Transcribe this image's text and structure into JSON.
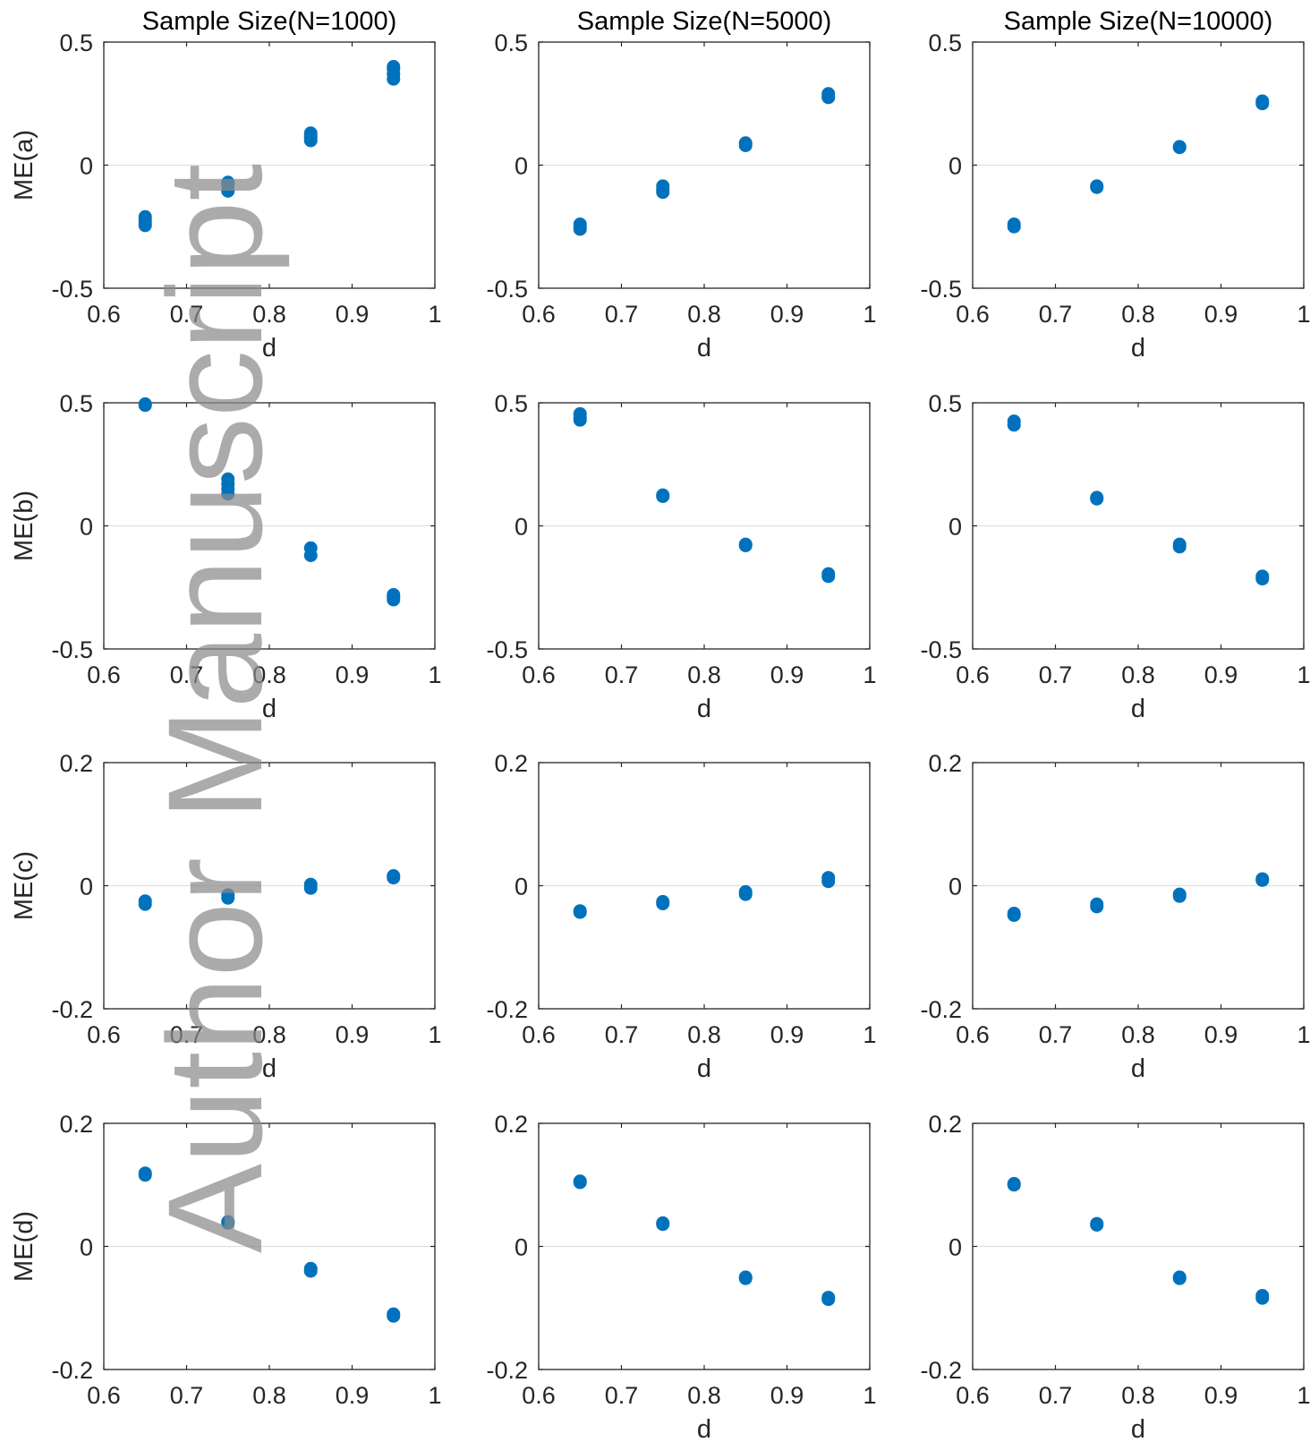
{
  "colors": {
    "marker": "#0072BD",
    "axis": "#262626",
    "zero_line": "#e0e0e0",
    "watermark": "#8c8c8c"
  },
  "watermark_text": "Author Manuscript",
  "column_titles": [
    "Sample Size(N=1000)",
    "Sample Size(N=5000)",
    "Sample Size(N=10000)"
  ],
  "chart_data": [
    {
      "type": "scatter",
      "title": "Sample Size(N=1000)",
      "ylabel": "ME(a)",
      "xlabel": "d",
      "xlim": [
        0.6,
        1
      ],
      "ylim": [
        -0.5,
        0.5
      ],
      "xticks": [
        "0.6",
        "0.7",
        "0.8",
        "0.9",
        "1"
      ],
      "yticks": [
        "-0.5",
        "0",
        "0.5"
      ],
      "x": [
        0.65,
        0.65,
        0.65,
        0.65,
        0.75,
        0.75,
        0.75,
        0.85,
        0.85,
        0.85,
        0.85,
        0.95,
        0.95,
        0.95,
        0.95
      ],
      "y": [
        -0.21,
        -0.22,
        -0.235,
        -0.245,
        -0.07,
        -0.08,
        -0.105,
        0.13,
        0.12,
        0.11,
        0.1,
        0.4,
        0.39,
        0.37,
        0.35
      ]
    },
    {
      "type": "scatter",
      "title": "Sample Size(N=5000)",
      "ylabel": "",
      "xlabel": "d",
      "xlim": [
        0.6,
        1
      ],
      "ylim": [
        -0.5,
        0.5
      ],
      "xticks": [
        "0.6",
        "0.7",
        "0.8",
        "0.9",
        "1"
      ],
      "yticks": [
        "-0.5",
        "0",
        "0.5"
      ],
      "x": [
        0.65,
        0.65,
        0.65,
        0.75,
        0.75,
        0.75,
        0.85,
        0.85,
        0.95,
        0.95,
        0.95
      ],
      "y": [
        -0.24,
        -0.25,
        -0.26,
        -0.085,
        -0.1,
        -0.11,
        0.09,
        0.08,
        0.29,
        0.28,
        0.275
      ]
    },
    {
      "type": "scatter",
      "title": "Sample Size(N=10000)",
      "ylabel": "",
      "xlabel": "d",
      "xlim": [
        0.6,
        1
      ],
      "ylim": [
        -0.5,
        0.5
      ],
      "xticks": [
        "0.6",
        "0.7",
        "0.8",
        "0.9",
        "1"
      ],
      "yticks": [
        "-0.5",
        "0",
        "0.5"
      ],
      "x": [
        0.65,
        0.65,
        0.75,
        0.75,
        0.85,
        0.85,
        0.95,
        0.95
      ],
      "y": [
        -0.24,
        -0.25,
        -0.085,
        -0.09,
        0.075,
        0.072,
        0.26,
        0.25
      ]
    },
    {
      "type": "scatter",
      "title": "",
      "ylabel": "ME(b)",
      "xlabel": "d",
      "xlim": [
        0.6,
        1
      ],
      "ylim": [
        -0.5,
        0.5
      ],
      "xticks": [
        "0.6",
        "0.7",
        "0.8",
        "0.9",
        "1"
      ],
      "yticks": [
        "-0.5",
        "0",
        "0.5"
      ],
      "x": [
        0.65,
        0.65,
        0.75,
        0.75,
        0.75,
        0.75,
        0.85,
        0.85,
        0.95,
        0.95,
        0.95
      ],
      "y": [
        0.495,
        0.49,
        0.19,
        0.17,
        0.15,
        0.13,
        -0.09,
        -0.12,
        -0.28,
        -0.29,
        -0.3
      ]
    },
    {
      "type": "scatter",
      "title": "",
      "ylabel": "",
      "xlabel": "d",
      "xlim": [
        0.6,
        1
      ],
      "ylim": [
        -0.5,
        0.5
      ],
      "xticks": [
        "0.6",
        "0.7",
        "0.8",
        "0.9",
        "1"
      ],
      "yticks": [
        "-0.5",
        "0",
        "0.5"
      ],
      "x": [
        0.65,
        0.65,
        0.65,
        0.75,
        0.75,
        0.85,
        0.85,
        0.95,
        0.95
      ],
      "y": [
        0.455,
        0.44,
        0.43,
        0.125,
        0.12,
        -0.075,
        -0.08,
        -0.195,
        -0.205
      ]
    },
    {
      "type": "scatter",
      "title": "",
      "ylabel": "",
      "xlabel": "d",
      "xlim": [
        0.6,
        1
      ],
      "ylim": [
        -0.5,
        0.5
      ],
      "xticks": [
        "0.6",
        "0.7",
        "0.8",
        "0.9",
        "1"
      ],
      "yticks": [
        "-0.5",
        "0",
        "0.5"
      ],
      "x": [
        0.65,
        0.65,
        0.75,
        0.75,
        0.85,
        0.85,
        0.95,
        0.95
      ],
      "y": [
        0.425,
        0.41,
        0.115,
        0.11,
        -0.075,
        -0.085,
        -0.205,
        -0.215
      ]
    },
    {
      "type": "scatter",
      "title": "",
      "ylabel": "ME(c)",
      "xlabel": "d",
      "xlim": [
        0.6,
        1
      ],
      "ylim": [
        -0.2,
        0.2
      ],
      "xticks": [
        "0.6",
        "0.7",
        "0.8",
        "0.9",
        "1"
      ],
      "yticks": [
        "-0.2",
        "0",
        "0.2"
      ],
      "x": [
        0.65,
        0.65,
        0.75,
        0.75,
        0.85,
        0.85,
        0.95,
        0.95
      ],
      "y": [
        -0.025,
        -0.03,
        -0.015,
        -0.02,
        0.002,
        -0.004,
        0.016,
        0.013
      ]
    },
    {
      "type": "scatter",
      "title": "",
      "ylabel": "",
      "xlabel": "d",
      "xlim": [
        0.6,
        1
      ],
      "ylim": [
        -0.2,
        0.2
      ],
      "xticks": [
        "0.6",
        "0.7",
        "0.8",
        "0.9",
        "1"
      ],
      "yticks": [
        "-0.2",
        "0",
        "0.2"
      ],
      "x": [
        0.65,
        0.65,
        0.75,
        0.75,
        0.85,
        0.85,
        0.95,
        0.95
      ],
      "y": [
        -0.041,
        -0.043,
        -0.026,
        -0.029,
        -0.01,
        -0.014,
        0.013,
        0.007
      ]
    },
    {
      "type": "scatter",
      "title": "",
      "ylabel": "",
      "xlabel": "d",
      "xlim": [
        0.6,
        1
      ],
      "ylim": [
        -0.2,
        0.2
      ],
      "xticks": [
        "0.6",
        "0.7",
        "0.8",
        "0.9",
        "1"
      ],
      "yticks": [
        "-0.2",
        "0",
        "0.2"
      ],
      "x": [
        0.65,
        0.65,
        0.75,
        0.75,
        0.85,
        0.85,
        0.95,
        0.95
      ],
      "y": [
        -0.045,
        -0.048,
        -0.03,
        -0.034,
        -0.014,
        -0.017,
        0.011,
        0.009
      ]
    },
    {
      "type": "scatter",
      "title": "",
      "ylabel": "ME(d)",
      "xlabel": "",
      "xlim": [
        0.6,
        1
      ],
      "ylim": [
        -0.2,
        0.2
      ],
      "xticks": [
        "0.6",
        "0.7",
        "0.8",
        "0.9",
        "1"
      ],
      "yticks": [
        "-0.2",
        "0",
        "0.2"
      ],
      "x": [
        0.65,
        0.65,
        0.75,
        0.75,
        0.85,
        0.85,
        0.95,
        0.95
      ],
      "y": [
        0.119,
        0.116,
        0.04,
        0.038,
        -0.036,
        -0.04,
        -0.11,
        -0.113
      ]
    },
    {
      "type": "scatter",
      "title": "",
      "ylabel": "",
      "xlabel": "d",
      "xlim": [
        0.6,
        1
      ],
      "ylim": [
        -0.2,
        0.2
      ],
      "xticks": [
        "0.6",
        "0.7",
        "0.8",
        "0.9",
        "1"
      ],
      "yticks": [
        "-0.2",
        "0",
        "0.2"
      ],
      "x": [
        0.65,
        0.65,
        0.75,
        0.75,
        0.85,
        0.85,
        0.95,
        0.95
      ],
      "y": [
        0.106,
        0.104,
        0.038,
        0.036,
        -0.05,
        -0.052,
        -0.083,
        -0.086
      ]
    },
    {
      "type": "scatter",
      "title": "",
      "ylabel": "",
      "xlabel": "d",
      "xlim": [
        0.6,
        1
      ],
      "ylim": [
        -0.2,
        0.2
      ],
      "xticks": [
        "0.6",
        "0.7",
        "0.8",
        "0.9",
        "1"
      ],
      "yticks": [
        "-0.2",
        "0",
        "0.2"
      ],
      "x": [
        0.65,
        0.65,
        0.75,
        0.75,
        0.85,
        0.85,
        0.95,
        0.95
      ],
      "y": [
        0.102,
        0.1,
        0.037,
        0.035,
        -0.05,
        -0.052,
        -0.08,
        -0.084
      ]
    }
  ]
}
